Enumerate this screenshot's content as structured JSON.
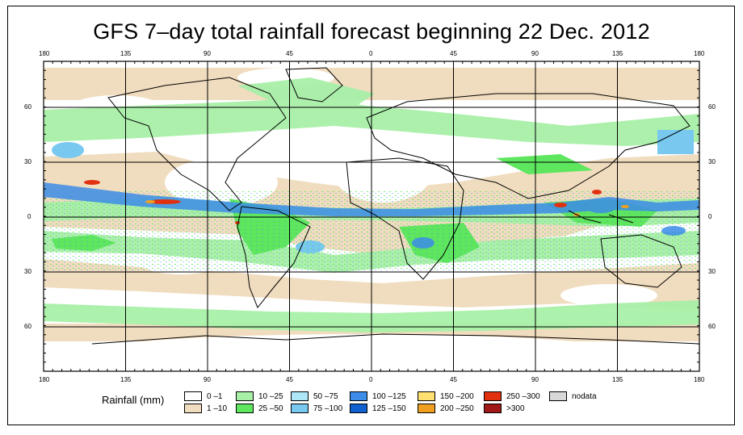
{
  "title": "GFS 7–day total rainfall forecast beginning 22 Dec. 2012",
  "axes": {
    "lon_labels": [
      "180",
      "135",
      "90",
      "45",
      "0",
      "45",
      "90",
      "135",
      "180"
    ],
    "lat_labels_left": [
      "60",
      "30",
      "0",
      "30",
      "60"
    ],
    "lat_labels_right": [
      "60",
      "30",
      "0",
      "30",
      "60"
    ]
  },
  "legend": {
    "title": "Rainfall (mm)",
    "items": [
      {
        "label": "0 –1",
        "color": "#ffffff"
      },
      {
        "label": "1 –10",
        "color": "#f0dcbe"
      },
      {
        "label": "10 –25",
        "color": "#a8f0a8"
      },
      {
        "label": "25 –50",
        "color": "#5ee65e"
      },
      {
        "label": "50 –75",
        "color": "#aee8f8"
      },
      {
        "label": "75 –100",
        "color": "#78c8f0"
      },
      {
        "label": "100 –125",
        "color": "#3c8ce8"
      },
      {
        "label": "125 –150",
        "color": "#1060d0"
      },
      {
        "label": "150 –200",
        "color": "#ffe070"
      },
      {
        "label": "200 –250",
        "color": "#f0a020"
      },
      {
        "label": "250 –300",
        "color": "#e03010"
      },
      {
        "label": ">300",
        "color": "#a01818"
      },
      {
        "label": "nodata",
        "color": "#d8d8d8"
      }
    ]
  },
  "colors": {
    "background": "#ffffff",
    "dry": "#f0dcbe",
    "wet": "#a8f0a8",
    "heavy": "#5ee65e",
    "blue": "#3c8ce8",
    "red": "#e03010"
  }
}
